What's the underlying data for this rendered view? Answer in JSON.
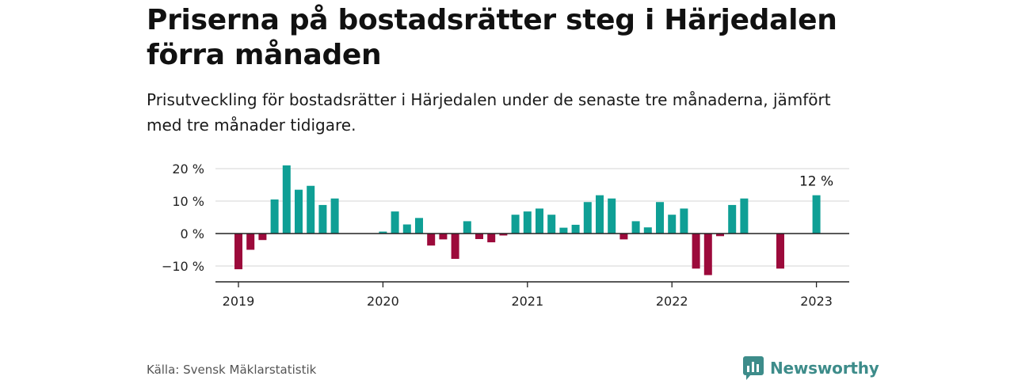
{
  "title": "Priserna på bostadsrätter steg i Härjedalen förra månaden",
  "subtitle": "Prisutveckling för bostadsrätter i Härjedalen under de senaste tre månaderna, jämfört med tre månader tidigare.",
  "source": "Källa: Svensk Mäklarstatistik",
  "brand": "Newsworthy",
  "colors": {
    "positive": "#0f9f95",
    "negative": "#9c0a3b",
    "grid": "#dddddd",
    "axis": "#222222",
    "brand": "#3d8c8a"
  },
  "chart_data": {
    "type": "bar",
    "x_start": "2019-01",
    "x_end": "2023-01",
    "ylim": [
      -15,
      22
    ],
    "yticks": [
      -10,
      0,
      10,
      20
    ],
    "ytick_labels": [
      "−10 %",
      "0 %",
      "10 %",
      "20 %"
    ],
    "xticks": [
      "2019-01",
      "2020-01",
      "2021-01",
      "2022-01",
      "2023-01"
    ],
    "xtick_labels": [
      "2019",
      "2020",
      "2021",
      "2022",
      "2023"
    ],
    "grid": true,
    "annotation": {
      "month": "2023-01",
      "text": "12 %"
    },
    "months": [
      "2019-01",
      "2019-02",
      "2019-03",
      "2019-04",
      "2019-05",
      "2019-06",
      "2019-07",
      "2019-08",
      "2019-09",
      "2019-10",
      "2019-11",
      "2019-12",
      "2020-01",
      "2020-02",
      "2020-03",
      "2020-04",
      "2020-05",
      "2020-06",
      "2020-07",
      "2020-08",
      "2020-09",
      "2020-10",
      "2020-11",
      "2020-12",
      "2021-01",
      "2021-02",
      "2021-03",
      "2021-04",
      "2021-05",
      "2021-06",
      "2021-07",
      "2021-08",
      "2021-09",
      "2021-10",
      "2021-11",
      "2021-12",
      "2022-01",
      "2022-02",
      "2022-03",
      "2022-04",
      "2022-05",
      "2022-06",
      "2022-07",
      "2022-08",
      "2022-09",
      "2022-10",
      "2022-11",
      "2022-12",
      "2023-01"
    ],
    "values": [
      -11,
      -5,
      -2,
      10.5,
      21,
      13.5,
      14.7,
      8.8,
      10.8,
      null,
      null,
      null,
      0.6,
      6.8,
      2.8,
      4.8,
      -3.7,
      -1.8,
      -7.8,
      3.8,
      -1.7,
      -2.7,
      -0.6,
      5.8,
      6.8,
      7.7,
      5.8,
      1.8,
      2.7,
      9.7,
      11.8,
      10.8,
      -1.8,
      3.8,
      1.9,
      9.7,
      5.8,
      7.7,
      -10.8,
      -12.8,
      -0.8,
      8.8,
      10.8,
      null,
      null,
      -10.8,
      null,
      null,
      11.8
    ]
  }
}
